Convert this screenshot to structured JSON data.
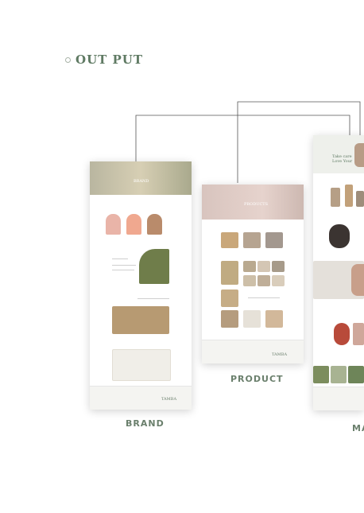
{
  "section": {
    "title": "OUT PUT"
  },
  "pages": [
    {
      "caption": "BRAND",
      "hero_text": "BRAND"
    },
    {
      "caption": "PRODUCT",
      "hero_text": "PRODUCTS"
    },
    {
      "caption": "MA",
      "hero_text": "Take care Love Your"
    }
  ],
  "brand_logo": "TAMBA"
}
